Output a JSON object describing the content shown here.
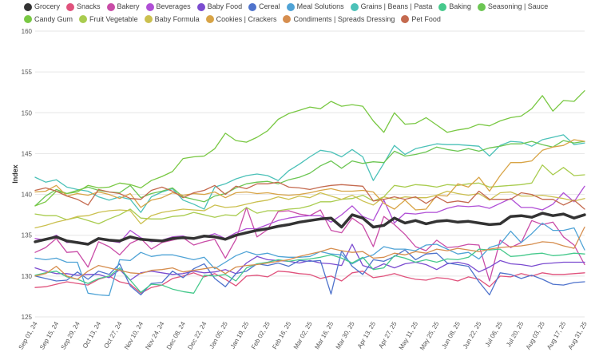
{
  "chart_data": {
    "type": "line",
    "ylabel": "Index",
    "ylim": [
      125,
      160
    ],
    "yticks": [
      125,
      130,
      135,
      140,
      145,
      150,
      155,
      160
    ],
    "grid": true,
    "legend": "top",
    "x": [
      "Sep 01, 24",
      "Sep 08, 24",
      "Sep 15, 24",
      "Sep 22, 24",
      "Sep 29, 24",
      "Oct 06, 24",
      "Oct 13, 24",
      "Oct 20, 24",
      "Oct 27, 24",
      "Nov 03, 24",
      "Nov 10, 24",
      "Nov 17, 24",
      "Nov 24, 24",
      "Dec 01, 24",
      "Dec 08, 24",
      "Dec 15, 24",
      "Dec 22, 24",
      "Dec 29, 24",
      "Jan 05, 25",
      "Jan 12, 25",
      "Jan 19, 25",
      "Jan 26, 25",
      "Feb 02, 25",
      "Feb 09, 25",
      "Feb 16, 25",
      "Feb 23, 25",
      "Mar 02, 25",
      "Mar 09, 25",
      "Mar 16, 25",
      "Mar 23, 25",
      "Mar 30, 25",
      "Apr 06, 25",
      "Apr 13, 25",
      "Apr 20, 25",
      "Apr 27, 25",
      "May 04, 25",
      "May 11, 25",
      "May 18, 25",
      "May 25, 25",
      "Jun 01, 25",
      "Jun 08, 25",
      "Jun 15, 25",
      "Jun 22, 25",
      "Jun 29, 25",
      "Jul 06, 25",
      "Jul 13, 25",
      "Jul 20, 25",
      "Jul 27, 25",
      "Aug 03, 25",
      "Aug 10, 25",
      "Aug 17, 25",
      "Aug 24, 25",
      "Aug 31, 25"
    ],
    "xtick_labels": [
      "Sep 01, 24",
      "Sep 15, 24",
      "Sep 29, 24",
      "Oct 13, 24",
      "Oct 27, 24",
      "Nov 10, 24",
      "Nov 24, 24",
      "Dec 08, 24",
      "Dec 22, 24",
      "Jan 05, 25",
      "Jan 19, 25",
      "Feb 02, 25",
      "Feb 16, 25",
      "Mar 02, 25",
      "Mar 16, 25",
      "Mar 30, 25",
      "Apr 13, 25",
      "Apr 27, 25",
      "May 11, 25",
      "May 25, 25",
      "Jun 08, 25",
      "Jun 22, 25",
      "Jul 06, 25",
      "Jul 20, 25",
      "Aug 03, 25",
      "Aug 17, 25",
      "Aug 31, 25"
    ],
    "series": [
      {
        "name": "Grocery",
        "color": "#333333",
        "width": 3.5,
        "values": [
          134.2,
          134.5,
          134.8,
          134.3,
          134.1,
          133.9,
          134.6,
          134.4,
          134.3,
          134.8,
          134.5,
          134.4,
          134.3,
          134.6,
          134.7,
          134.6,
          134.9,
          134.8,
          134.5,
          135.0,
          135.3,
          135.6,
          135.8,
          136.1,
          136.3,
          136.6,
          136.8,
          137.0,
          137.1,
          136.0,
          137.5,
          137.1,
          136.0,
          136.2,
          137.1,
          136.5,
          136.8,
          136.4,
          136.7,
          136.8,
          136.6,
          136.7,
          136.5,
          136.3,
          136.4,
          137.3,
          137.4,
          137.2,
          137.7,
          137.4,
          137.6,
          137.1,
          137.5
        ]
      },
      {
        "name": "Snacks",
        "color": "#e0527c",
        "width": 1.3,
        "values": [
          128.6,
          128.7,
          129.0,
          129.3,
          129.1,
          128.9,
          129.6,
          130.0,
          129.3,
          129.0,
          127.9,
          128.6,
          128.9,
          129.7,
          130.0,
          130.4,
          129.9,
          130.3,
          129.6,
          128.8,
          130.0,
          130.1,
          129.9,
          130.6,
          130.5,
          130.3,
          130.2,
          129.7,
          130.0,
          129.4,
          130.4,
          130.6,
          129.8,
          130.0,
          130.3,
          129.9,
          129.6,
          129.5,
          129.8,
          129.7,
          129.4,
          129.9,
          129.6,
          128.7,
          130.0,
          129.9,
          130.3,
          130.0,
          130.4,
          130.2,
          130.2,
          130.3,
          130.4
        ]
      },
      {
        "name": "Bakery",
        "color": "#c94ca7",
        "width": 1.3,
        "values": [
          132.9,
          133.5,
          134.6,
          132.9,
          133.0,
          131.1,
          134.2,
          133.6,
          132.6,
          134.0,
          134.6,
          133.3,
          134.1,
          134.4,
          134.7,
          133.8,
          134.2,
          134.5,
          132.2,
          134.5,
          138.4,
          134.8,
          135.7,
          137.9,
          138.0,
          137.6,
          137.4,
          138.1,
          135.6,
          135.3,
          137.1,
          136.2,
          133.6,
          137.3,
          136.3,
          135.1,
          133.6,
          133.1,
          134.4,
          133.5,
          133.6,
          133.9,
          133.8,
          129.4,
          134.4,
          133.5,
          134.1,
          136.8,
          136.3,
          136.6,
          134.8,
          133.8,
          131.4
        ]
      },
      {
        "name": "Beverages",
        "color": "#b04fd6",
        "width": 1.3,
        "values": [
          134.6,
          134.4,
          135.0,
          134.1,
          134.2,
          134.0,
          134.5,
          134.3,
          134.1,
          135.6,
          134.7,
          134.2,
          134.4,
          134.8,
          134.9,
          134.5,
          134.8,
          135.2,
          134.6,
          135.3,
          135.8,
          135.8,
          136.3,
          136.8,
          137.1,
          137.3,
          137.4,
          137.4,
          136.6,
          137.5,
          138.6,
          137.3,
          136.8,
          139.3,
          136.5,
          137.7,
          137.6,
          137.8,
          137.8,
          138.3,
          138.6,
          138.5,
          138.6,
          138.3,
          138.9,
          139.5,
          138.4,
          138.4,
          138.1,
          138.8,
          140.2,
          139.1,
          141.0
        ]
      },
      {
        "name": "Baby Food",
        "color": "#7b4cd0",
        "width": 1.3,
        "values": [
          131.0,
          130.6,
          130.3,
          130.3,
          130.1,
          130.2,
          130.2,
          129.8,
          130.8,
          129.5,
          130.4,
          130.6,
          130.4,
          130.2,
          130.3,
          130.6,
          130.4,
          130.5,
          130.8,
          130.3,
          131.6,
          132.4,
          132.0,
          131.9,
          131.8,
          131.6,
          131.9,
          131.6,
          131.5,
          131.3,
          133.9,
          131.3,
          130.9,
          131.5,
          131.0,
          131.5,
          131.7,
          131.4,
          130.8,
          131.5,
          131.7,
          131.4,
          130.5,
          131.1,
          131.9,
          131.5,
          131.4,
          131.2,
          131.5,
          131.6,
          131.7,
          131.7,
          131.7
        ]
      },
      {
        "name": "Cereal",
        "color": "#4f73cc",
        "width": 1.3,
        "values": [
          130.0,
          129.7,
          129.4,
          129.5,
          130.5,
          129.6,
          130.6,
          130.2,
          131.5,
          128.8,
          127.7,
          129.1,
          129.2,
          130.6,
          129.8,
          130.9,
          131.5,
          129.7,
          128.7,
          130.3,
          130.6,
          131.5,
          131.3,
          131.6,
          131.2,
          131.9,
          131.8,
          131.9,
          127.8,
          133.1,
          131.2,
          130.2,
          132.0,
          131.8,
          132.4,
          133.2,
          132.0,
          132.7,
          132.8,
          131.6,
          131.4,
          131.2,
          129.3,
          127.7,
          130.4,
          130.2,
          129.7,
          130.1,
          129.6,
          129.0,
          128.9,
          129.2,
          129.3
        ]
      },
      {
        "name": "Meal Solutions",
        "color": "#4fa3d6",
        "width": 1.3,
        "values": [
          132.2,
          132.0,
          132.2,
          131.7,
          131.7,
          127.9,
          127.7,
          127.6,
          132.0,
          131.9,
          132.9,
          132.4,
          132.6,
          132.6,
          132.3,
          132.0,
          132.3,
          130.9,
          131.7,
          132.5,
          133.0,
          132.6,
          132.8,
          132.4,
          132.3,
          132.3,
          132.4,
          133.0,
          132.7,
          132.6,
          131.5,
          132.2,
          132.6,
          133.6,
          133.3,
          133.3,
          133.1,
          133.8,
          133.9,
          133.3,
          132.7,
          132.9,
          132.1,
          133.5,
          133.9,
          135.5,
          134.1,
          135.2,
          136.5,
          135.6,
          135.6,
          135.9,
          133.2
        ]
      },
      {
        "name": "Grains | Beans | Pasta",
        "color": "#4bc1b8",
        "width": 1.3,
        "values": [
          142.1,
          141.5,
          141.8,
          140.9,
          140.6,
          140.4,
          139.7,
          139.3,
          139.7,
          139.4,
          137.8,
          139.7,
          140.3,
          140.7,
          139.3,
          138.8,
          138.2,
          140.9,
          141.3,
          141.9,
          142.3,
          142.5,
          142.3,
          141.7,
          142.9,
          143.7,
          144.6,
          145.4,
          145.2,
          144.6,
          145.5,
          144.6,
          141.7,
          143.8,
          146.0,
          144.9,
          145.6,
          145.9,
          146.2,
          146.1,
          146.1,
          146.0,
          145.9,
          144.7,
          146.0,
          146.5,
          146.4,
          145.9,
          146.7,
          147.0,
          147.3,
          146.1,
          146.3
        ]
      },
      {
        "name": "Baking",
        "color": "#46c98c",
        "width": 1.3,
        "values": [
          130.1,
          130.4,
          130.6,
          129.9,
          129.6,
          129.1,
          129.7,
          130.0,
          131.0,
          129.5,
          128.0,
          129.0,
          128.9,
          128.4,
          128.1,
          127.9,
          130.1,
          130.0,
          130.2,
          129.4,
          131.0,
          131.5,
          131.7,
          132.0,
          131.8,
          132.0,
          132.1,
          132.3,
          132.6,
          132.2,
          131.6,
          132.3,
          130.8,
          131.0,
          132.5,
          132.2,
          131.7,
          132.0,
          131.7,
          132.1,
          132.0,
          132.3,
          133.3,
          133.2,
          133.3,
          132.4,
          132.5,
          132.7,
          132.8,
          132.5,
          132.6,
          132.8,
          132.7
        ]
      },
      {
        "name": "Seasoning | Sauce",
        "color": "#6cc653",
        "width": 1.3,
        "values": [
          138.6,
          139.8,
          140.6,
          140.1,
          140.5,
          140.9,
          140.5,
          140.3,
          140.2,
          141.1,
          139.6,
          140.1,
          140.4,
          140.8,
          139.7,
          139.4,
          139.1,
          139.8,
          140.1,
          140.8,
          141.3,
          141.5,
          141.6,
          141.3,
          141.8,
          142.1,
          142.6,
          143.5,
          144.1,
          143.2,
          144.1,
          143.8,
          144.0,
          143.9,
          145.3,
          144.7,
          144.9,
          145.2,
          145.8,
          145.5,
          145.3,
          145.6,
          145.3,
          145.7,
          145.9,
          146.2,
          146.2,
          146.5,
          146.1,
          145.8,
          146.6,
          146.3,
          146.5
        ]
      },
      {
        "name": "Candy Gum",
        "color": "#79c843",
        "width": 1.3,
        "values": [
          138.6,
          139.1,
          140.4,
          140.1,
          140.3,
          141.1,
          140.8,
          140.9,
          141.4,
          141.2,
          140.8,
          141.7,
          142.2,
          142.8,
          144.4,
          144.6,
          144.7,
          145.6,
          147.5,
          146.6,
          146.4,
          147.0,
          147.8,
          149.2,
          149.9,
          150.3,
          150.7,
          150.5,
          151.4,
          150.8,
          151.0,
          150.8,
          149.0,
          147.6,
          150.0,
          148.6,
          148.7,
          149.4,
          148.5,
          147.6,
          147.9,
          148.1,
          148.6,
          148.4,
          149.0,
          149.4,
          149.6,
          150.5,
          152.1,
          150.2,
          151.5,
          151.4,
          152.7
        ]
      },
      {
        "name": "Fruit Vegetable",
        "color": "#a9cc4f",
        "width": 1.3,
        "values": [
          137.6,
          137.4,
          137.4,
          136.9,
          137.2,
          136.8,
          136.4,
          137.0,
          137.5,
          138.2,
          137.1,
          137.0,
          137.0,
          137.3,
          137.4,
          137.8,
          137.5,
          137.2,
          137.5,
          137.4,
          138.4,
          137.7,
          138.0,
          138.0,
          138.2,
          138.3,
          138.6,
          139.1,
          139.1,
          139.4,
          139.5,
          139.9,
          139.2,
          139.7,
          141.1,
          140.9,
          141.2,
          141.1,
          140.9,
          141.2,
          141.1,
          141.3,
          141.4,
          140.9,
          141.0,
          141.1,
          141.2,
          141.4,
          143.6,
          142.4,
          143.3,
          142.3,
          142.4
        ]
      },
      {
        "name": "Baby Formula",
        "color": "#cbc04f",
        "width": 1.3,
        "values": [
          135.9,
          136.2,
          136.6,
          136.9,
          137.3,
          137.4,
          137.8,
          138.0,
          138.1,
          138.0,
          136.4,
          137.4,
          137.8,
          138.0,
          138.2,
          138.1,
          138.0,
          138.7,
          138.4,
          138.5,
          138.8,
          139.1,
          139.3,
          139.7,
          139.4,
          139.8,
          139.6,
          140.2,
          139.8,
          139.4,
          139.9,
          139.2,
          138.7,
          139.7,
          139.4,
          139.7,
          139.6,
          139.6,
          139.9,
          140.4,
          140.1,
          139.9,
          140.1,
          139.3,
          140.2,
          140.3,
          139.8,
          139.8,
          139.9,
          139.7,
          139.5,
          139.2,
          139.5
        ]
      },
      {
        "name": "Cookies | Crackers",
        "color": "#d8a446",
        "width": 1.3,
        "values": [
          140.3,
          140.4,
          141.1,
          139.8,
          140.1,
          139.9,
          140.3,
          140.0,
          139.5,
          140.1,
          138.4,
          139.3,
          139.6,
          140.2,
          139.9,
          140.1,
          140.0,
          140.3,
          139.6,
          140.2,
          140.3,
          140.1,
          140.2,
          140.0,
          139.9,
          140.0,
          140.2,
          140.5,
          140.7,
          140.4,
          140.4,
          140.5,
          140.3,
          138.9,
          138.2,
          139.3,
          138.1,
          138.2,
          139.9,
          139.8,
          141.3,
          140.9,
          142.1,
          140.4,
          142.3,
          143.9,
          143.9,
          144.1,
          145.4,
          145.8,
          146.0,
          146.7,
          146.5
        ]
      },
      {
        "name": "Condiments | Spreads Dressing",
        "color": "#d68e4f",
        "width": 1.3,
        "values": [
          130.0,
          130.3,
          131.2,
          130.0,
          129.6,
          130.6,
          131.3,
          131.0,
          130.7,
          130.4,
          130.3,
          130.7,
          130.8,
          131.0,
          130.5,
          130.7,
          130.9,
          131.1,
          130.3,
          131.1,
          131.3,
          131.4,
          131.6,
          131.8,
          132.0,
          132.4,
          132.7,
          133.0,
          133.4,
          133.1,
          132.9,
          133.0,
          132.2,
          132.3,
          132.8,
          132.6,
          133.0,
          132.8,
          133.3,
          133.1,
          133.4,
          133.2,
          133.0,
          133.3,
          133.5,
          133.6,
          133.7,
          133.9,
          134.2,
          134.1,
          133.7,
          133.4,
          136.0
        ]
      },
      {
        "name": "Pet Food",
        "color": "#c46a4f",
        "width": 1.3,
        "values": [
          140.5,
          140.8,
          140.4,
          139.8,
          139.4,
          138.7,
          140.6,
          140.3,
          140.1,
          139.5,
          139.4,
          140.5,
          140.9,
          140.4,
          139.6,
          140.2,
          140.5,
          141.1,
          140.0,
          141.0,
          140.7,
          141.3,
          141.3,
          141.5,
          140.9,
          140.8,
          140.6,
          140.9,
          141.1,
          141.2,
          141.1,
          141.0,
          139.2,
          139.4,
          139.7,
          139.4,
          139.7,
          138.9,
          139.7,
          139.0,
          139.2,
          139.0,
          140.4,
          139.4,
          139.4,
          139.4,
          140.2,
          140.0,
          139.4,
          139.4,
          138.7,
          139.3,
          138.2
        ]
      }
    ]
  }
}
